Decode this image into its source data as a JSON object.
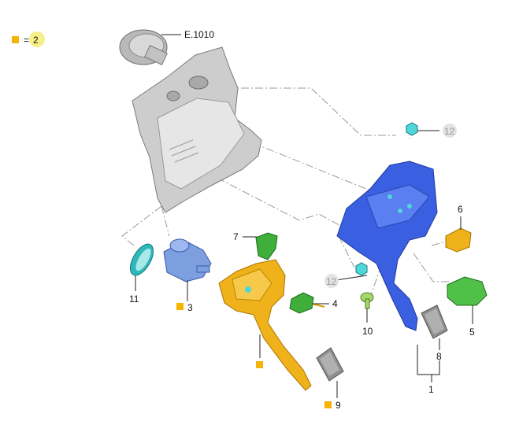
{
  "legend": {
    "equals": "=",
    "qty": "2"
  },
  "colors": {
    "marker": "#f5b400",
    "pedal_box": "#3a5fe0",
    "clutch_pedal": "#f0b21a",
    "switch_green": "#3fae3a",
    "sensor_blue": "#7d9fe0",
    "cyan_part": "#4fd6d8",
    "bulkhead_grey": "#c9c9c9",
    "pad_grey": "#8f8f8f"
  },
  "callouts": {
    "ref": "E.1010",
    "p1": "1",
    "p3": "3",
    "p4": "4",
    "p5": "5",
    "p6": "6",
    "p7": "7",
    "p8": "8",
    "p9": "9",
    "p10": "10",
    "p11": "11",
    "p12a": "12",
    "p12b": "12"
  }
}
